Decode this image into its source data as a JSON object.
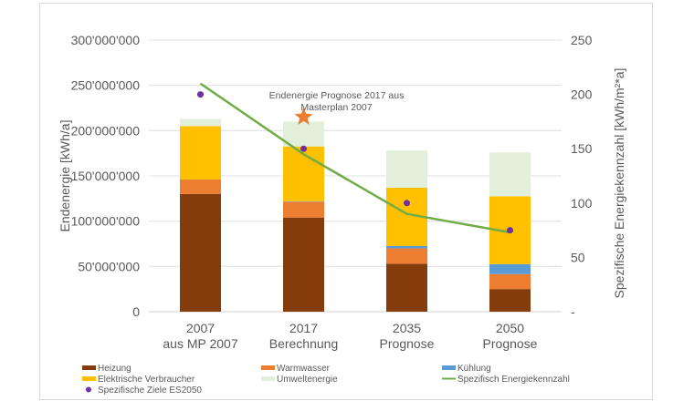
{
  "chart_data": {
    "type": "bar",
    "stacked": true,
    "categories": [
      [
        "2007",
        "aus MP 2007"
      ],
      [
        "2017",
        "Berechnung"
      ],
      [
        "2035",
        "Prognose"
      ],
      [
        "2050",
        "Prognose"
      ]
    ],
    "ylabel": "Endenergie [kWh/a]",
    "y2label": "Spezifische Energiekennzahl [kWh/m²*a]",
    "ylim": [
      0,
      300000000
    ],
    "yticks": [
      "0",
      "50'000'000",
      "100'000'000",
      "150'000'000",
      "200'000'000",
      "250'000'000",
      "300'000'000"
    ],
    "y2lim": [
      0,
      250
    ],
    "y2ticks": [
      "-",
      "50",
      "100",
      "150",
      "200",
      "250"
    ],
    "grid": true,
    "legend_position": "bottom",
    "series": [
      {
        "name": "Heizung",
        "color": "#843c0c",
        "values": [
          130000000,
          104000000,
          53000000,
          25000000
        ]
      },
      {
        "name": "Warmwasser",
        "color": "#ed7d31",
        "values": [
          16000000,
          17500000,
          17000000,
          16500000
        ]
      },
      {
        "name": "Kühlung",
        "color": "#5b9bd5",
        "values": [
          0,
          500000,
          2500000,
          11000000
        ]
      },
      {
        "name": "Elektrische Verbraucher",
        "color": "#ffc000",
        "values": [
          59000000,
          60500000,
          64500000,
          75000000
        ]
      },
      {
        "name": "Umweltenergie",
        "color": "#e2efda",
        "values": [
          8000000,
          27500000,
          41000000,
          48500000
        ]
      }
    ],
    "line": {
      "name": "Spezifisch Energiekennzahl",
      "color": "#70ad47",
      "axis": "right",
      "values": [
        210,
        145,
        90,
        73
      ]
    },
    "points": {
      "name": "Spezifische Ziele ES2050",
      "color": "#7030a0",
      "axis": "right",
      "values": [
        200,
        150,
        100,
        75
      ]
    },
    "annotation": {
      "lines": [
        "Endenergie Prognose 2017 aus",
        "Masterplan 2007"
      ],
      "marker": "star",
      "color": "#ed7d31",
      "category_index": 1,
      "value": 215000000
    }
  }
}
